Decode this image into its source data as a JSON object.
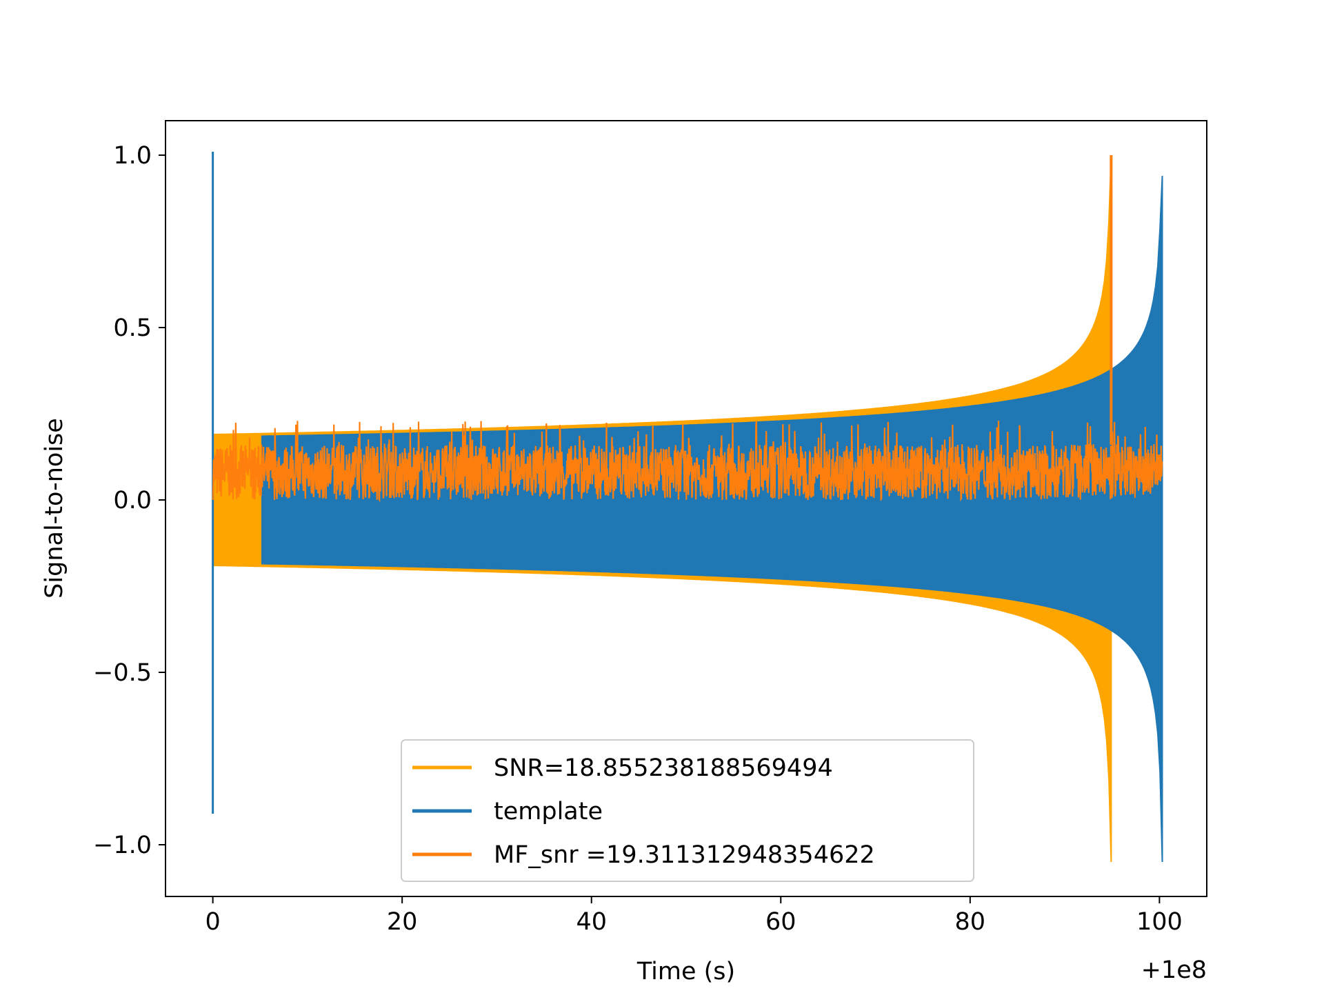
{
  "chart_data": {
    "type": "line",
    "title": "",
    "xlabel": "Time (s)",
    "ylabel": "Signal-to-noise",
    "x_offset_label": "+1e8",
    "xlim": [
      -5,
      105
    ],
    "ylim": [
      -1.15,
      1.1
    ],
    "x_ticks": [
      0,
      20,
      40,
      60,
      80,
      100
    ],
    "x_tick_labels": [
      "0",
      "20",
      "40",
      "60",
      "80",
      "100"
    ],
    "y_ticks": [
      -1.0,
      -0.5,
      0.0,
      0.5,
      1.0
    ],
    "y_tick_labels": [
      "−1.0",
      "−0.5",
      "0.0",
      "0.5",
      "1.0"
    ],
    "grid": false,
    "legend_position": "lower-center",
    "series": [
      {
        "name": "SNR=18.855238188569494",
        "color": "#FFA500",
        "kind": "chirp",
        "start": 0,
        "end": 94.9,
        "amp_start": 0.19,
        "peak_high": 1.0,
        "peak_low": -1.05
      },
      {
        "name": "template",
        "color": "#1F77B4",
        "kind": "chirp",
        "start": 5.2,
        "end": 100.3,
        "amp_start": 0.185,
        "peak_high": 0.94,
        "peak_low": -1.05,
        "spike_x": 0.0,
        "spike_high": 1.01,
        "spike_low": -0.91
      },
      {
        "name": " MF_snr =19.311312948354622",
        "color": "#FF7F0E",
        "kind": "noise",
        "start": 0,
        "end": 100.3,
        "band_low": 0.0,
        "band_high": 0.16,
        "peak_x": 94.9,
        "peak_y": 1.0
      }
    ]
  }
}
